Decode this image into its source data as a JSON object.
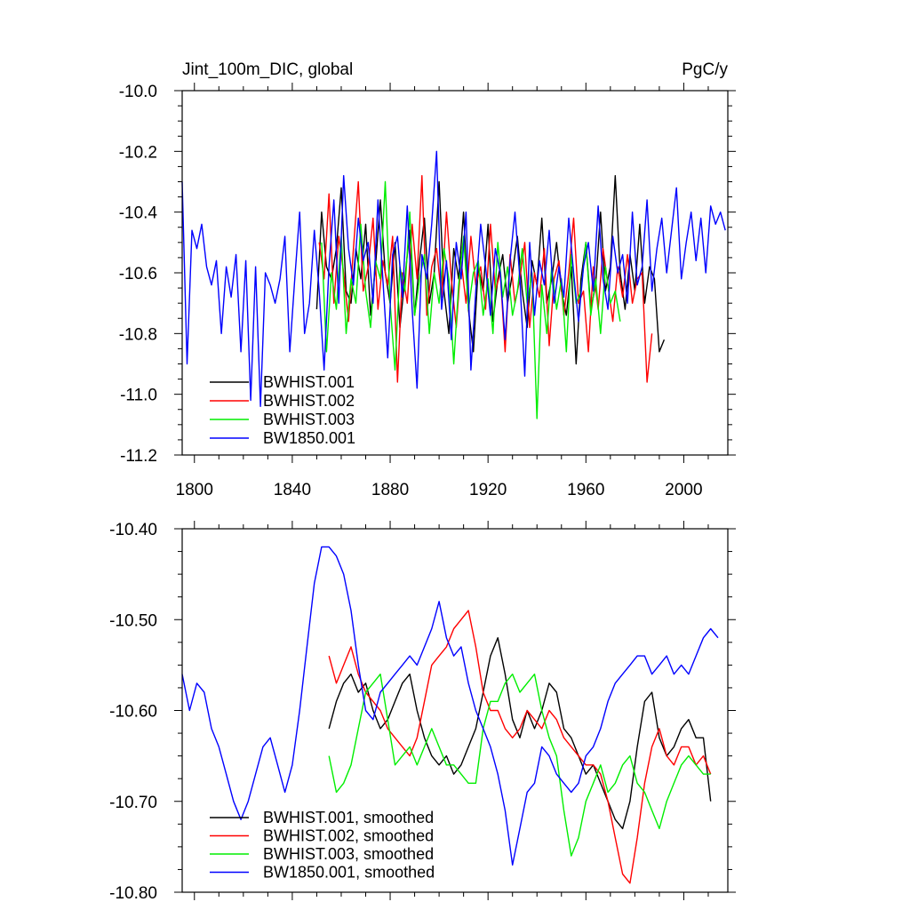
{
  "chart_data": [
    {
      "type": "line",
      "title": "Jint_100m_DIC, global",
      "units": "PgC/y",
      "xlim": [
        1795,
        2018
      ],
      "ylim": [
        -11.2,
        -10.0
      ],
      "xticks": [
        1800,
        1840,
        1880,
        1920,
        1960,
        2000
      ],
      "yticks": [
        -11.2,
        -11.0,
        -10.8,
        -10.6,
        -10.4,
        -10.2,
        -10.0
      ],
      "ytick_labels": [
        "-11.2",
        "-11.0",
        "-10.8",
        "-10.6",
        "-10.4",
        "-10.2",
        "-10.0"
      ],
      "legend_position": "bottom-left",
      "series": [
        {
          "name": "BWHIST.001",
          "color": "#000000",
          "x0": 1850,
          "step": 2,
          "values": [
            -10.72,
            -10.4,
            -10.58,
            -10.62,
            -10.52,
            -10.32,
            -10.66,
            -10.7,
            -10.52,
            -10.62,
            -10.44,
            -10.74,
            -10.58,
            -10.36,
            -10.6,
            -10.7,
            -10.5,
            -10.78,
            -10.62,
            -10.46,
            -10.74,
            -10.56,
            -10.42,
            -10.7,
            -10.6,
            -10.3,
            -10.66,
            -10.8,
            -10.52,
            -10.62,
            -10.4,
            -10.72,
            -10.86,
            -10.58,
            -10.66,
            -10.44,
            -10.76,
            -10.62,
            -10.54,
            -10.7,
            -10.6,
            -10.48,
            -10.66,
            -10.78,
            -10.56,
            -10.64,
            -10.42,
            -10.7,
            -10.62,
            -10.5,
            -10.66,
            -10.74,
            -10.58,
            -10.9,
            -10.62,
            -10.5,
            -10.72,
            -10.64,
            -10.4,
            -10.66,
            -10.58,
            -10.28,
            -10.6,
            -10.72,
            -10.54,
            -10.66,
            -10.44,
            -10.7,
            -10.58,
            -10.62,
            -10.86,
            -10.82
          ]
        },
        {
          "name": "BWHIST.002",
          "color": "#ff0000",
          "x0": 1851,
          "step": 2,
          "values": [
            -10.5,
            -10.62,
            -10.34,
            -10.7,
            -10.48,
            -10.6,
            -10.76,
            -10.52,
            -10.3,
            -10.66,
            -10.58,
            -10.42,
            -10.72,
            -10.56,
            -10.64,
            -10.48,
            -10.96,
            -10.6,
            -10.7,
            -10.44,
            -10.62,
            -10.28,
            -10.74,
            -10.58,
            -10.52,
            -10.68,
            -10.4,
            -10.62,
            -10.78,
            -10.56,
            -10.7,
            -10.48,
            -10.64,
            -10.58,
            -10.72,
            -10.44,
            -10.66,
            -10.6,
            -10.86,
            -10.54,
            -10.7,
            -10.62,
            -10.5,
            -10.78,
            -10.6,
            -10.68,
            -10.52,
            -10.84,
            -10.62,
            -10.56,
            -10.74,
            -10.6,
            -10.42,
            -10.7,
            -10.66,
            -10.86,
            -10.58,
            -10.72,
            -10.52,
            -10.64,
            -10.76,
            -10.58,
            -10.68,
            -10.54,
            -10.7,
            -10.62,
            -10.6,
            -10.96,
            -10.8
          ]
        },
        {
          "name": "BWHIST.003",
          "color": "#00ee00",
          "x0": 1852,
          "step": 2,
          "values": [
            -10.5,
            -10.86,
            -10.6,
            -10.72,
            -10.48,
            -10.8,
            -10.62,
            -10.7,
            -10.44,
            -10.66,
            -10.78,
            -10.56,
            -10.62,
            -10.3,
            -10.7,
            -10.92,
            -10.58,
            -10.66,
            -10.4,
            -10.74,
            -10.62,
            -10.54,
            -10.8,
            -10.6,
            -10.7,
            -10.52,
            -10.62,
            -10.9,
            -10.64,
            -10.48,
            -10.72,
            -10.6,
            -10.56,
            -10.74,
            -10.62,
            -10.8,
            -10.5,
            -10.68,
            -10.58,
            -10.74,
            -10.66,
            -10.52,
            -10.7,
            -10.6,
            -11.08,
            -10.64,
            -10.8,
            -10.58,
            -10.72,
            -10.62,
            -10.86,
            -10.54,
            -10.7,
            -10.66,
            -10.5,
            -10.74,
            -10.62,
            -10.8,
            -10.58,
            -10.7,
            -10.66,
            -10.76
          ]
        },
        {
          "name": "BW1850.001",
          "color": "#0000ff",
          "x0": 1795,
          "step": 2,
          "values": [
            -10.3,
            -10.9,
            -10.46,
            -10.52,
            -10.44,
            -10.58,
            -10.64,
            -10.56,
            -10.8,
            -10.58,
            -10.68,
            -10.54,
            -10.86,
            -10.56,
            -11.02,
            -10.58,
            -11.04,
            -10.6,
            -10.64,
            -10.7,
            -10.62,
            -10.48,
            -10.86,
            -10.62,
            -10.4,
            -10.8,
            -10.7,
            -10.46,
            -10.66,
            -10.92,
            -10.58,
            -10.36,
            -10.7,
            -10.28,
            -10.52,
            -10.64,
            -10.42,
            -10.56,
            -10.5,
            -10.7,
            -10.36,
            -10.62,
            -10.88,
            -10.54,
            -10.48,
            -10.68,
            -10.38,
            -10.72,
            -10.98,
            -10.54,
            -10.62,
            -10.44,
            -10.2,
            -10.72,
            -10.56,
            -10.82,
            -10.5,
            -10.62,
            -10.4,
            -10.92,
            -10.66,
            -10.44,
            -10.58,
            -10.74,
            -10.52,
            -10.6,
            -10.82,
            -10.56,
            -10.4,
            -10.62,
            -10.94,
            -10.5,
            -10.74,
            -10.56,
            -10.64,
            -10.46,
            -10.7,
            -10.58,
            -10.68,
            -10.42,
            -10.6,
            -10.76,
            -10.58,
            -10.5,
            -10.66,
            -10.38,
            -10.62,
            -10.72,
            -10.48,
            -10.6,
            -10.54,
            -10.7,
            -10.4,
            -10.64,
            -10.58,
            -10.36,
            -10.66,
            -10.52,
            -10.42,
            -10.6,
            -10.46,
            -10.32,
            -10.62,
            -10.5,
            -10.4,
            -10.56,
            -10.42,
            -10.6,
            -10.38,
            -10.44,
            -10.4,
            -10.46
          ]
        }
      ]
    },
    {
      "type": "line",
      "xlim": [
        1795,
        2018
      ],
      "ylim": [
        -10.8,
        -10.4
      ],
      "xticks": [
        1800,
        1840,
        1880,
        1920,
        1960,
        2000
      ],
      "yticks": [
        -10.8,
        -10.7,
        -10.6,
        -10.5,
        -10.4
      ],
      "ytick_labels": [
        "-10.80",
        "-10.70",
        "-10.60",
        "-10.50",
        "-10.40"
      ],
      "legend_position": "bottom-left",
      "series": [
        {
          "name": "BWHIST.001, smoothed",
          "color": "#000000",
          "x": [
            1855,
            1858,
            1861,
            1864,
            1867,
            1870,
            1873,
            1876,
            1879,
            1882,
            1885,
            1888,
            1891,
            1894,
            1897,
            1900,
            1903,
            1906,
            1909,
            1912,
            1915,
            1918,
            1921,
            1924,
            1927,
            1930,
            1933,
            1936,
            1939,
            1942,
            1945,
            1948,
            1951,
            1954,
            1957,
            1960,
            1963,
            1966,
            1969,
            1972,
            1975,
            1978,
            1981,
            1984,
            1987,
            1990,
            1993,
            1996,
            1999,
            2002,
            2005,
            2008,
            2011
          ],
          "values": [
            -10.62,
            -10.59,
            -10.57,
            -10.56,
            -10.58,
            -10.57,
            -10.6,
            -10.62,
            -10.61,
            -10.59,
            -10.57,
            -10.56,
            -10.6,
            -10.63,
            -10.65,
            -10.66,
            -10.65,
            -10.67,
            -10.66,
            -10.64,
            -10.62,
            -10.58,
            -10.54,
            -10.52,
            -10.56,
            -10.61,
            -10.63,
            -10.6,
            -10.62,
            -10.6,
            -10.57,
            -10.58,
            -10.62,
            -10.63,
            -10.65,
            -10.67,
            -10.66,
            -10.68,
            -10.7,
            -10.72,
            -10.73,
            -10.7,
            -10.64,
            -10.59,
            -10.58,
            -10.63,
            -10.65,
            -10.64,
            -10.62,
            -10.61,
            -10.63,
            -10.63,
            -10.7
          ]
        },
        {
          "name": "BWHIST.002, smoothed",
          "color": "#ff0000",
          "x": [
            1855,
            1858,
            1861,
            1864,
            1867,
            1870,
            1873,
            1876,
            1879,
            1882,
            1885,
            1888,
            1891,
            1894,
            1897,
            1900,
            1903,
            1906,
            1909,
            1912,
            1915,
            1918,
            1921,
            1924,
            1927,
            1930,
            1933,
            1936,
            1939,
            1942,
            1945,
            1948,
            1951,
            1954,
            1957,
            1960,
            1963,
            1966,
            1969,
            1972,
            1975,
            1978,
            1981,
            1984,
            1987,
            1990,
            1993,
            1996,
            1999,
            2002,
            2005,
            2008,
            2011
          ],
          "values": [
            -10.54,
            -10.57,
            -10.55,
            -10.53,
            -10.56,
            -10.58,
            -10.59,
            -10.6,
            -10.62,
            -10.63,
            -10.64,
            -10.65,
            -10.63,
            -10.59,
            -10.55,
            -10.54,
            -10.53,
            -10.51,
            -10.5,
            -10.49,
            -10.53,
            -10.58,
            -10.6,
            -10.6,
            -10.62,
            -10.63,
            -10.62,
            -10.6,
            -10.61,
            -10.62,
            -10.6,
            -10.61,
            -10.63,
            -10.64,
            -10.65,
            -10.66,
            -10.66,
            -10.67,
            -10.7,
            -10.74,
            -10.78,
            -10.79,
            -10.74,
            -10.68,
            -10.64,
            -10.62,
            -10.65,
            -10.66,
            -10.64,
            -10.64,
            -10.66,
            -10.65,
            -10.67
          ]
        },
        {
          "name": "BWHIST.003, smoothed",
          "color": "#00ee00",
          "x": [
            1855,
            1858,
            1861,
            1864,
            1867,
            1870,
            1873,
            1876,
            1879,
            1882,
            1885,
            1888,
            1891,
            1894,
            1897,
            1900,
            1903,
            1906,
            1909,
            1912,
            1915,
            1918,
            1921,
            1924,
            1927,
            1930,
            1933,
            1936,
            1939,
            1942,
            1945,
            1948,
            1951,
            1954,
            1957,
            1960,
            1963,
            1966,
            1969,
            1972,
            1975,
            1978,
            1981,
            1984,
            1987,
            1990,
            1993,
            1996,
            1999,
            2002,
            2005,
            2008,
            2011
          ],
          "values": [
            -10.65,
            -10.69,
            -10.68,
            -10.66,
            -10.62,
            -10.58,
            -10.57,
            -10.56,
            -10.61,
            -10.66,
            -10.65,
            -10.64,
            -10.66,
            -10.64,
            -10.62,
            -10.64,
            -10.66,
            -10.66,
            -10.67,
            -10.68,
            -10.68,
            -10.62,
            -10.59,
            -10.59,
            -10.57,
            -10.56,
            -10.58,
            -10.57,
            -10.56,
            -10.6,
            -10.63,
            -10.65,
            -10.71,
            -10.76,
            -10.74,
            -10.7,
            -10.68,
            -10.66,
            -10.69,
            -10.68,
            -10.66,
            -10.65,
            -10.68,
            -10.69,
            -10.71,
            -10.73,
            -10.7,
            -10.68,
            -10.66,
            -10.65,
            -10.66,
            -10.67,
            -10.67
          ]
        },
        {
          "name": "BW1850.001, smoothed",
          "color": "#0000ff",
          "x": [
            1795,
            1798,
            1801,
            1804,
            1807,
            1810,
            1813,
            1816,
            1819,
            1822,
            1825,
            1828,
            1831,
            1834,
            1837,
            1840,
            1843,
            1846,
            1849,
            1852,
            1855,
            1858,
            1861,
            1864,
            1867,
            1870,
            1873,
            1876,
            1879,
            1882,
            1885,
            1888,
            1891,
            1894,
            1897,
            1900,
            1903,
            1906,
            1909,
            1912,
            1915,
            1918,
            1921,
            1924,
            1927,
            1930,
            1933,
            1936,
            1939,
            1942,
            1945,
            1948,
            1951,
            1954,
            1957,
            1960,
            1963,
            1966,
            1969,
            1972,
            1975,
            1978,
            1981,
            1984,
            1987,
            1990,
            1993,
            1996,
            1999,
            2002,
            2005,
            2008,
            2011,
            2014
          ],
          "values": [
            -10.56,
            -10.6,
            -10.57,
            -10.58,
            -10.62,
            -10.64,
            -10.67,
            -10.7,
            -10.72,
            -10.7,
            -10.67,
            -10.64,
            -10.63,
            -10.66,
            -10.69,
            -10.66,
            -10.6,
            -10.53,
            -10.46,
            -10.42,
            -10.42,
            -10.43,
            -10.45,
            -10.49,
            -10.55,
            -10.6,
            -10.61,
            -10.58,
            -10.57,
            -10.56,
            -10.55,
            -10.54,
            -10.55,
            -10.53,
            -10.51,
            -10.48,
            -10.52,
            -10.54,
            -10.53,
            -10.57,
            -10.6,
            -10.62,
            -10.64,
            -10.67,
            -10.71,
            -10.77,
            -10.73,
            -10.69,
            -10.68,
            -10.64,
            -10.65,
            -10.67,
            -10.68,
            -10.69,
            -10.68,
            -10.65,
            -10.64,
            -10.62,
            -10.59,
            -10.57,
            -10.56,
            -10.55,
            -10.54,
            -10.54,
            -10.56,
            -10.55,
            -10.54,
            -10.56,
            -10.55,
            -10.56,
            -10.54,
            -10.52,
            -10.51,
            -10.52
          ]
        }
      ]
    }
  ]
}
